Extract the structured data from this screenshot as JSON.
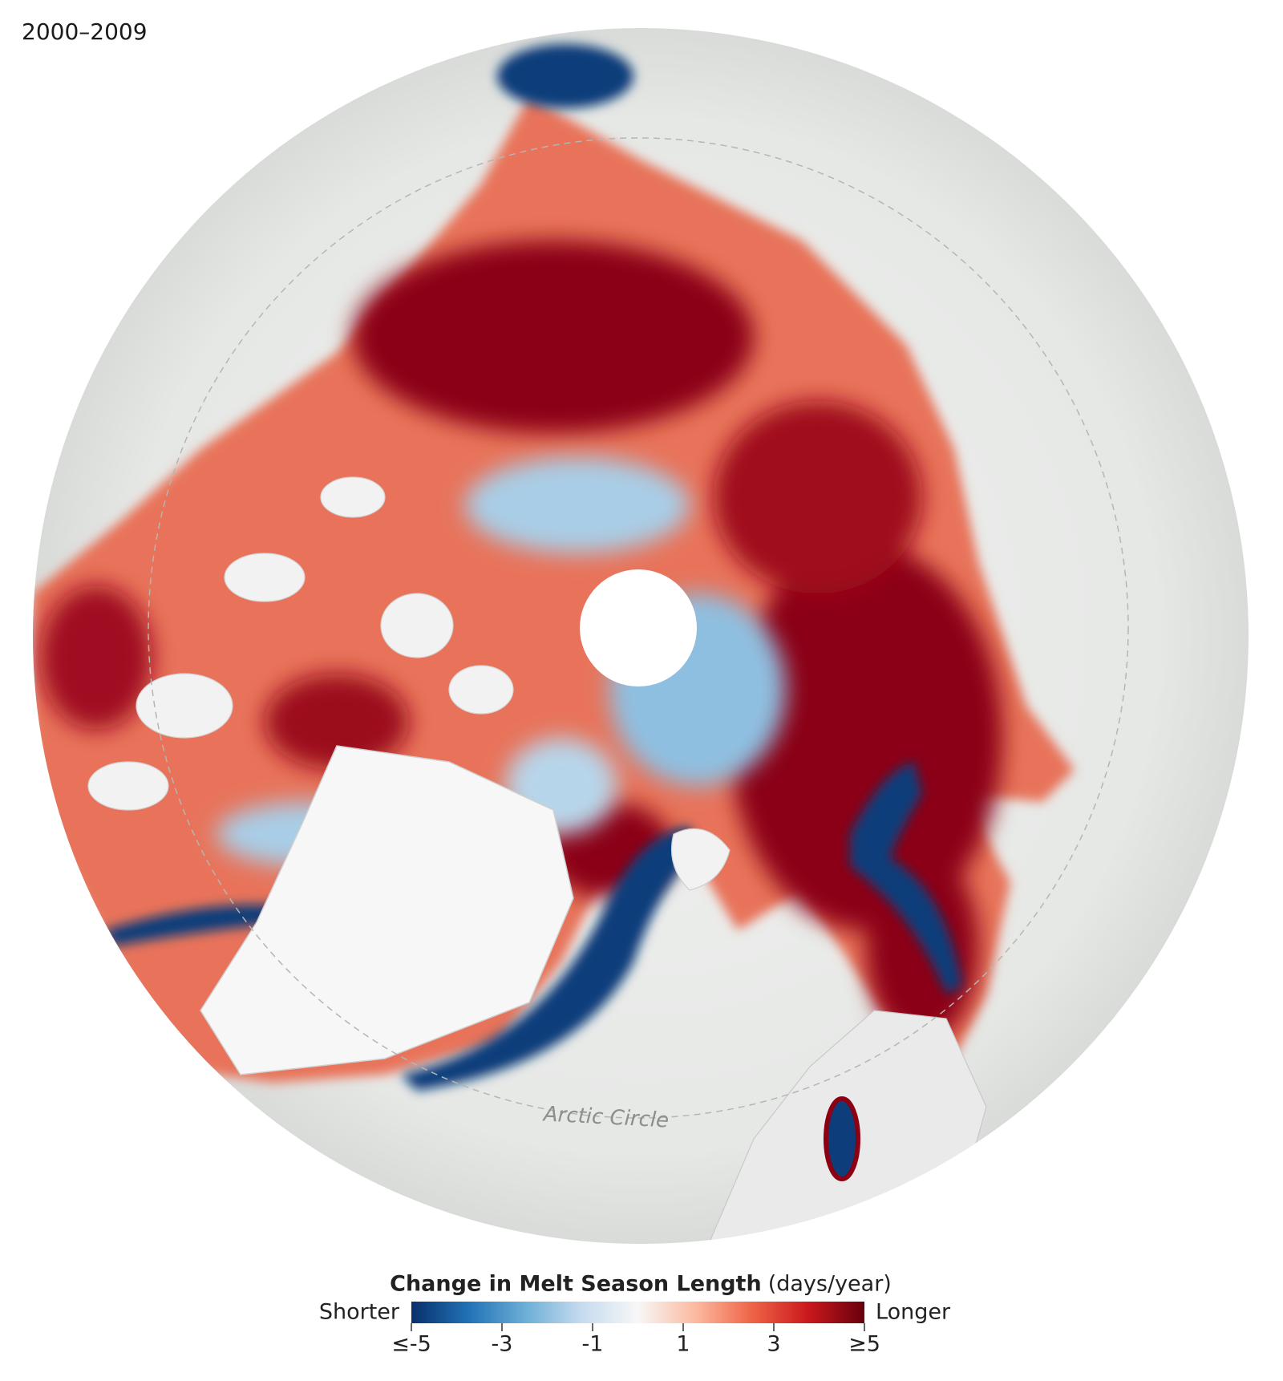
{
  "map": {
    "period": "2000–2009",
    "reference_label": "Arctic Circle"
  },
  "legend": {
    "title": "Change in Melt Season Length",
    "unit": "(days/year)",
    "low_label": "Shorter",
    "high_label": "Longer",
    "range": [
      -5,
      5
    ],
    "colors": [
      "#08306b",
      "#2171b5",
      "#6baed6",
      "#c6dbef",
      "#f7f7f7",
      "#fcbba1",
      "#ef6548",
      "#cb181d",
      "#67000d"
    ],
    "ticks": [
      {
        "value": -5,
        "label": "≤-5"
      },
      -3,
      -1,
      1,
      3,
      {
        "value": 5,
        "label": "≥5"
      }
    ]
  }
}
